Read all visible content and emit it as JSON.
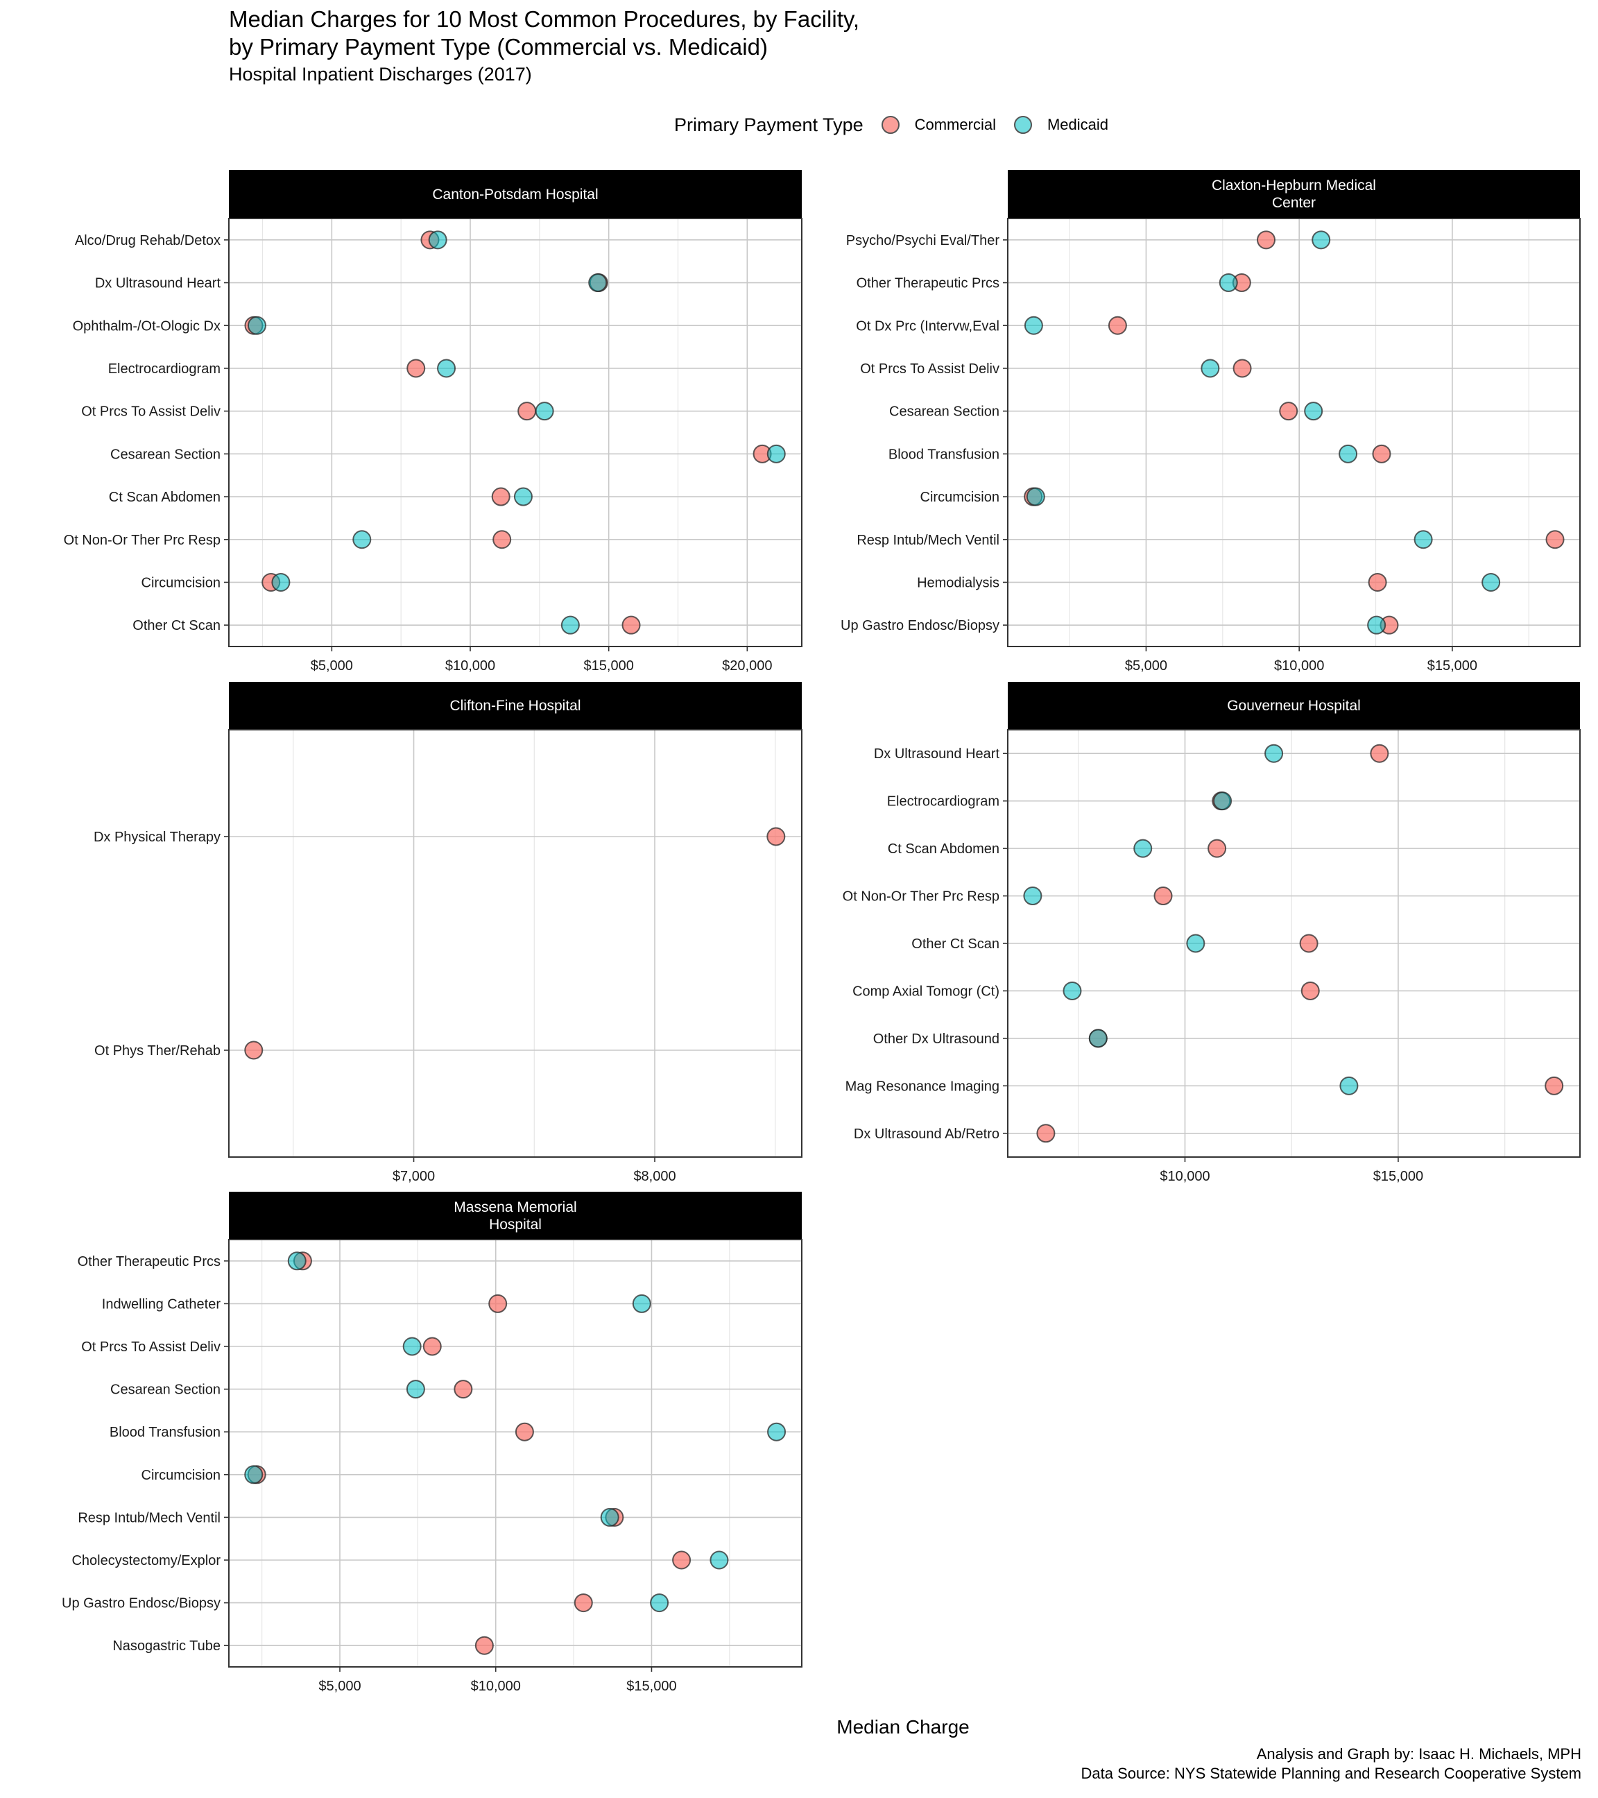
{
  "chart_data": {
    "type": "scatter",
    "title": "Median Charges for 10 Most Common Procedures, by Facility,\nby Primary Payment Type (Commercial vs. Medicaid)",
    "title_lines": [
      "Median Charges for 10 Most Common Procedures, by Facility,",
      "by Primary Payment Type (Commercial vs. Medicaid)"
    ],
    "subtitle": "Hospital Inpatient Discharges (2017)",
    "xlabel": "Median Charge",
    "ylabel": "",
    "legend": {
      "title": "Primary Payment Type",
      "placement": "top",
      "entries": [
        {
          "name": "Commercial",
          "color": "#F8766D"
        },
        {
          "name": "Medicaid",
          "color": "#00BFC4"
        }
      ]
    },
    "grid": true,
    "caption": [
      "Analysis and Graph by: Isaac H. Michaels, MPH",
      "Data Source: NYS Statewide Planning and Research Cooperative System"
    ],
    "facets": [
      {
        "name": "Canton-Potsdam Hospital",
        "strip_lines": [
          "Canton-Potsdam Hospital"
        ],
        "xlim": [
          1285,
          21970
        ],
        "xticks": [
          5000,
          10000,
          15000,
          20000
        ],
        "xtick_labels": [
          "$5,000",
          "$10,000",
          "$15,000",
          "$20,000"
        ],
        "categories": [
          "Alco/Drug Rehab/Detox",
          "Dx Ultrasound Heart",
          "Ophthalm-/Ot-Ologic Dx",
          "Electrocardiogram",
          "Ot Prcs To Assist Deliv",
          "Cesarean Section",
          "Ct Scan Abdomen",
          "Ot Non-Or Ther Prc Resp",
          "Circumcision",
          "Other Ct Scan"
        ],
        "series": [
          {
            "name": "Commercial",
            "values": [
              8546,
              14640,
              2186,
              8040,
              12045,
              20544,
              11107,
              11144,
              2805,
              15810
            ]
          },
          {
            "name": "Medicaid",
            "values": [
              8827,
              14600,
              2298,
              9137,
              12683,
              21050,
              11914,
              6088,
              3161,
              13615
            ]
          }
        ]
      },
      {
        "name": "Claxton-Hepburn Medical Center",
        "strip_lines": [
          "Claxton-Hepburn Medical",
          "Center"
        ],
        "xlim": [
          482,
          19170
        ],
        "xticks": [
          5000,
          10000,
          15000
        ],
        "xtick_labels": [
          "$5,000",
          "$10,000",
          "$15,000"
        ],
        "categories": [
          "Psycho/Psychi Eval/Ther",
          "Other Therapeutic Prcs",
          "Ot Dx Prc (Intervw,Eval",
          "Ot Prcs To Assist Deliv",
          "Cesarean Section",
          "Blood Transfusion",
          "Circumcision",
          "Resp Intub/Mech Ventil",
          "Hemodialysis",
          "Up Gastro Endosc/Biopsy"
        ],
        "series": [
          {
            "name": "Commercial",
            "values": [
              8920,
              8123,
              4070,
              8140,
              9651,
              12691,
              1312,
              18355,
              12558,
              12940
            ]
          },
          {
            "name": "Medicaid",
            "values": [
              10714,
              7691,
              1329,
              7093,
              10465,
              11595,
              1395,
              14053,
              16262,
              12525
            ]
          }
        ]
      },
      {
        "name": "Clifton-Fine Hospital",
        "strip_lines": [
          "Clifton-Fine Hospital"
        ],
        "xlim": [
          6233,
          8610
        ],
        "xticks": [
          7000,
          8000
        ],
        "xtick_labels": [
          "$7,000",
          "$8,000"
        ],
        "categories": [
          "Dx Physical Therapy",
          "Ot Phys Ther/Rehab"
        ],
        "series": [
          {
            "name": "Commercial",
            "values": [
              8503,
              6336
            ]
          },
          {
            "name": "Medicaid",
            "values": [
              null,
              null
            ]
          }
        ]
      },
      {
        "name": "Gouverneur Hospital",
        "strip_lines": [
          "Gouverneur Hospital"
        ],
        "xlim": [
          5845,
          19262
        ],
        "xticks": [
          10000,
          15000
        ],
        "xtick_labels": [
          "$10,000",
          "$15,000"
        ],
        "categories": [
          "Dx Ultrasound Heart",
          "Electrocardiogram",
          "Ct Scan Abdomen",
          "Ot Non-Or Ther Prc Resp",
          "Other Ct Scan",
          "Comp Axial Tomogr (Ct)",
          "Other Dx Ultrasound",
          "Mag Resonance Imaging",
          "Dx Ultrasound Ab/Retro"
        ],
        "series": [
          {
            "name": "Commercial",
            "values": [
              14560,
              10850,
              10750,
              9488,
              12905,
              12940,
              7964,
              18655,
              6738
            ]
          },
          {
            "name": "Medicaid",
            "values": [
              12083,
              10880,
              9012,
              6429,
              10250,
              7357,
              7964,
              13845,
              null
            ]
          }
        ]
      },
      {
        "name": "Massena Memorial Hospital",
        "strip_lines": [
          "Massena Memorial",
          "Hospital"
        ],
        "xlim": [
          1440,
          19818
        ],
        "xticks": [
          5000,
          10000,
          15000
        ],
        "xtick_labels": [
          "$5,000",
          "$10,000",
          "$15,000"
        ],
        "categories": [
          "Other Therapeutic Prcs",
          "Indwelling Catheter",
          "Ot Prcs To Assist Deliv",
          "Cesarean Section",
          "Blood Transfusion",
          "Circumcision",
          "Resp Intub/Mech Ventil",
          "Cholecystectomy/Explor",
          "Up Gastro Endosc/Biopsy",
          "Nasogastric Tube"
        ],
        "series": [
          {
            "name": "Commercial",
            "values": [
              3808,
              10066,
              7964,
              8957,
              10927,
              2334,
              13808,
              15960,
              12815,
              9636
            ]
          },
          {
            "name": "Medicaid",
            "values": [
              3626,
              14685,
              7318,
              7434,
              19007,
              2235,
              13659,
              17169,
              15248,
              null
            ]
          }
        ]
      }
    ]
  }
}
